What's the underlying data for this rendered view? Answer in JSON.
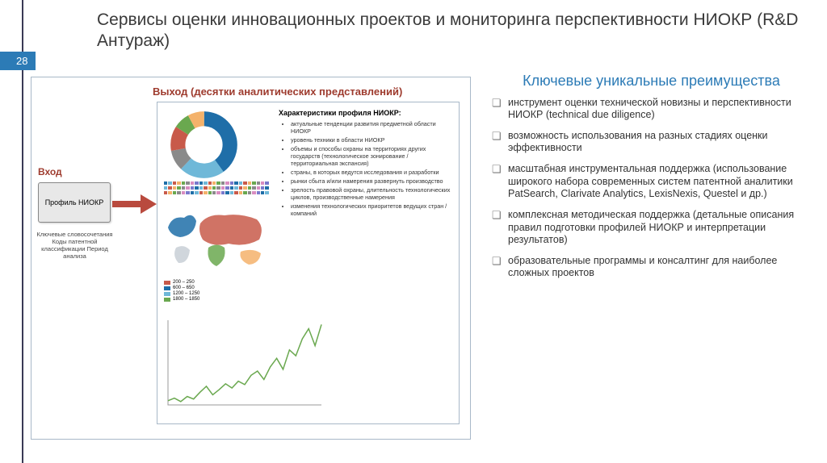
{
  "page_number": "28",
  "slide_title": "Сервисы оценки инновационных проектов и мониторинга перспективности НИОКР (R&D Антураж)",
  "colors": {
    "accent_blue": "#2c7bb6",
    "accent_red": "#9e3b2e",
    "frame_border": "#a8b8c8",
    "text_dark": "#3a3a3a"
  },
  "diagram": {
    "input_label": "Вход",
    "input_box": "Профиль НИОКР",
    "input_desc": "Ключевые словосочетания\nКоды патентной классификации\nПериод анализа",
    "output_label": "Выход (десятки аналитических представлений)",
    "arrow_color": "#b94a3e",
    "characteristics_title": "Характеристики профиля НИОКР:",
    "characteristics": [
      "актуальные тенденции развития предметной области НИОКР",
      "уровень техники в области НИОКР",
      "объемы и способы охраны на территориях других государств (технологическое зонирование / территориальная экспансия)",
      "страны, в которых ведутся исследования и разработки",
      "рынки сбыта и/или намерения развернуть производство",
      "зрелость правовой охраны, длительность технологических циклов, производственные намерения",
      "изменения технологических приоритетов ведущих стран / компаний"
    ],
    "donut": {
      "segments": [
        {
          "color": "#1f6ea8",
          "pct": 40
        },
        {
          "color": "#6fb8d8",
          "pct": 22
        },
        {
          "color": "#8a8a8a",
          "pct": 10
        },
        {
          "color": "#c85a4a",
          "pct": 12
        },
        {
          "color": "#6aa84f",
          "pct": 8
        },
        {
          "color": "#f4b26b",
          "pct": 8
        }
      ],
      "inner_color": "#ffffff"
    },
    "stripes_colors": [
      "#1f6ea8",
      "#6fb8d8",
      "#c85a4a",
      "#f4b26b",
      "#6aa84f",
      "#8a8a8a",
      "#d98cc0",
      "#7a7acc"
    ],
    "map": {
      "land_color": "#d0d6dc",
      "highlight_colors": [
        "#1f6ea8",
        "#c85a4a",
        "#6aa84f",
        "#f4b26b"
      ],
      "legend": [
        {
          "color": "#c85a4a",
          "label": "200 – 250"
        },
        {
          "color": "#1f6ea8",
          "label": "600 – 650"
        },
        {
          "color": "#6fb8d8",
          "label": "1200 – 1250"
        },
        {
          "color": "#6aa84f",
          "label": "1800 – 1850"
        }
      ]
    },
    "trend": {
      "line_color": "#6aa84f",
      "axis_color": "#999999",
      "ylim": [
        0,
        100
      ],
      "points": [
        5,
        8,
        4,
        10,
        7,
        15,
        22,
        12,
        18,
        25,
        20,
        28,
        24,
        35,
        40,
        30,
        45,
        55,
        42,
        65,
        58,
        78,
        90,
        70,
        95
      ]
    }
  },
  "advantages": {
    "title": "Ключевые уникальные преимущества",
    "items": [
      "инструмент оценки технической новизны и перспективности НИОКР (technical due diligence)",
      "возможность использования на разных стадиях оценки эффективности",
      "масштабная инструментальная поддержка (использование широкого набора современных систем патентной аналитики PatSearch, Clarivate Analytics, LexisNexis, Questel и др.)",
      "комплексная методическая поддержка (детальные описания правил подготовки профилей НИОКР и интерпретации результатов)",
      "образовательные программы и консалтинг для наиболее сложных проектов"
    ]
  }
}
